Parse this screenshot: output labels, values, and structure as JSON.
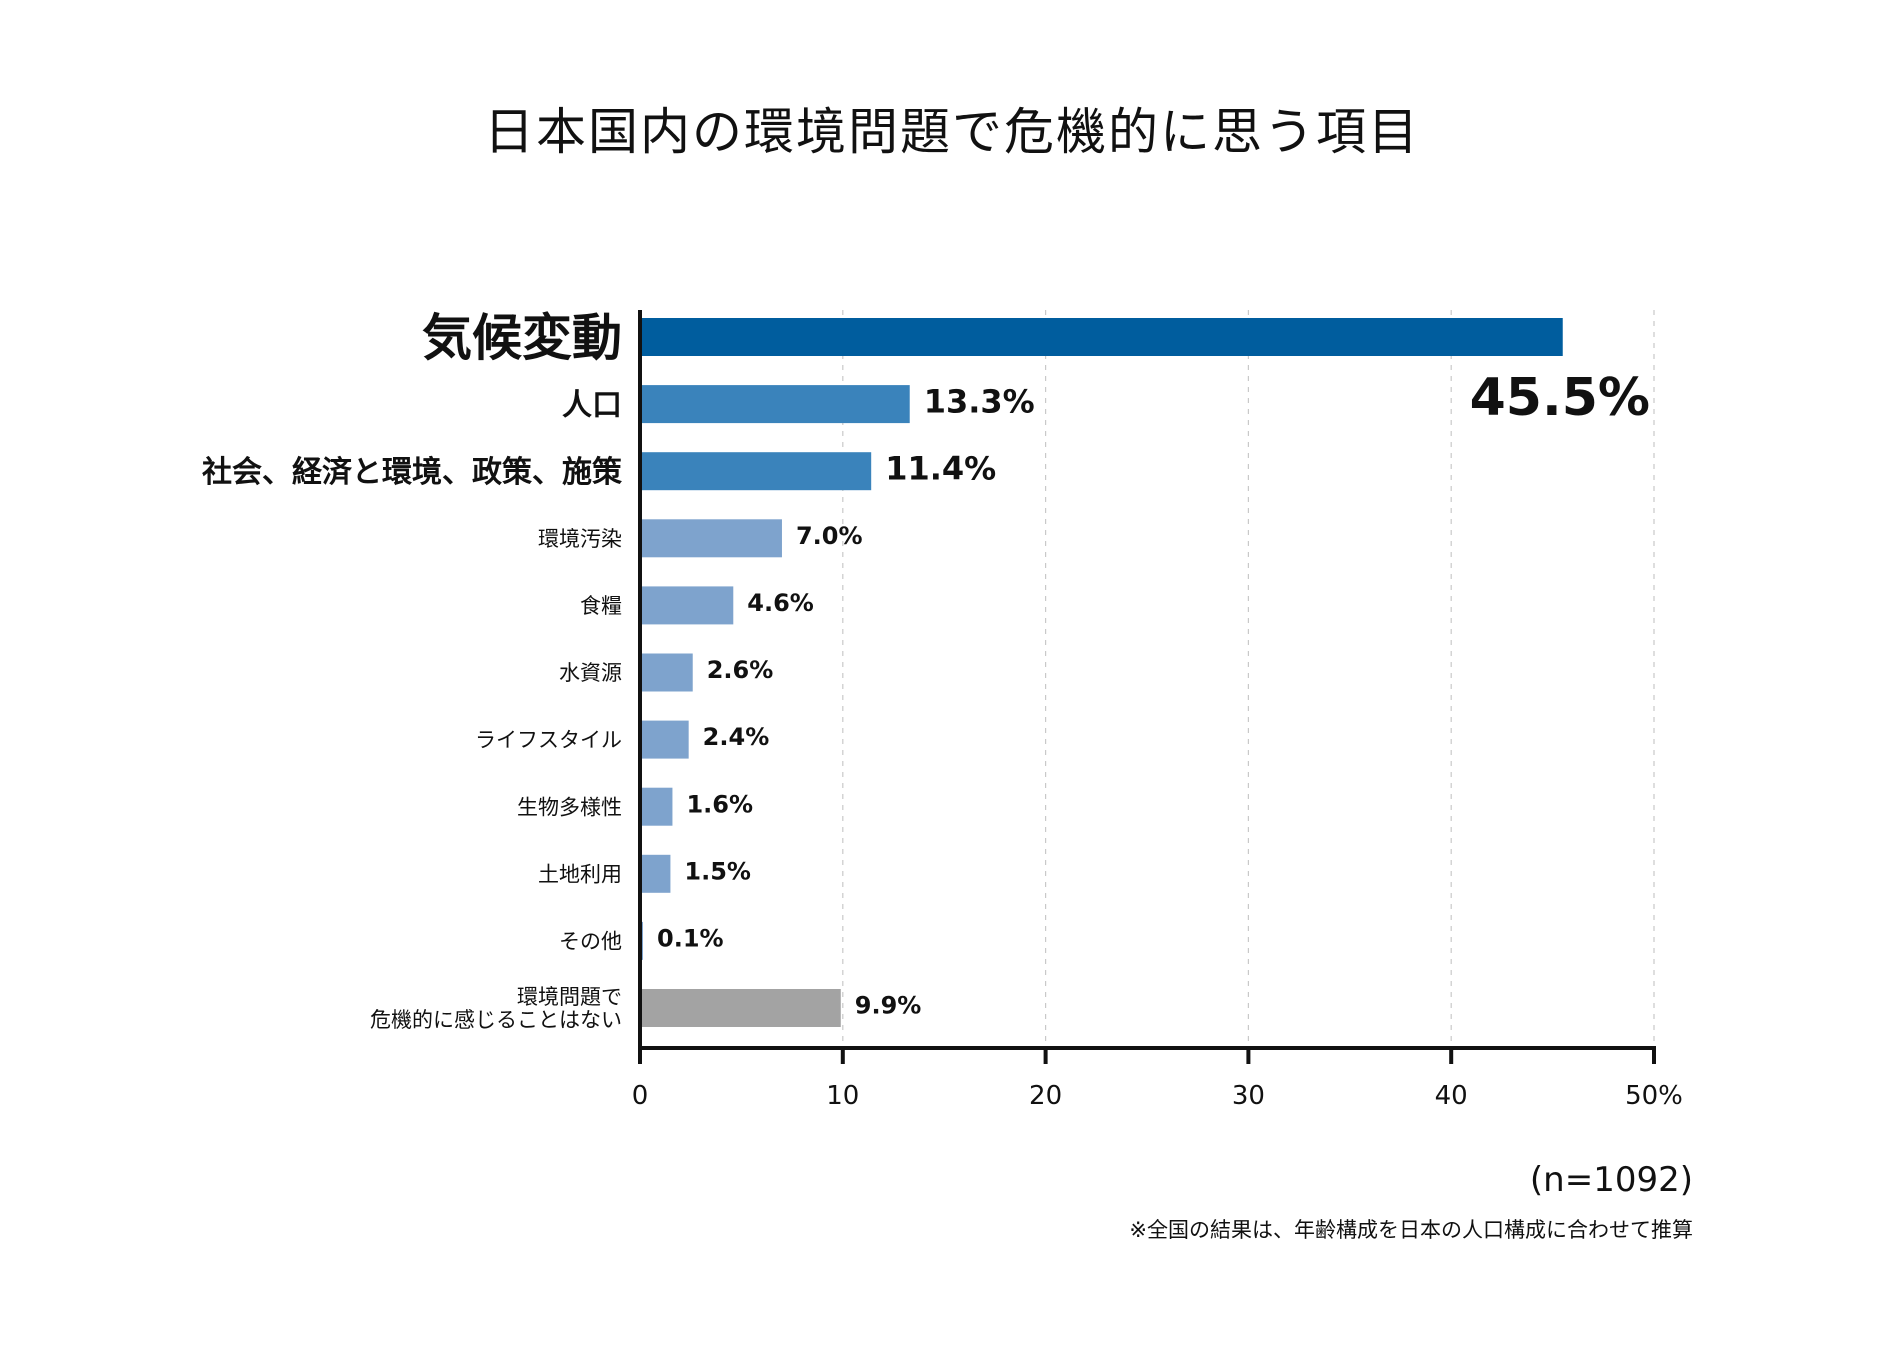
{
  "chart_data": {
    "type": "bar",
    "orientation": "horizontal",
    "title": "日本国内の環境問題で危機的に思う項目",
    "categories": [
      "気候変動",
      "人口",
      "社会、経済と環境、政策、施策",
      "環境汚染",
      "食糧",
      "水資源",
      "ライフスタイル",
      "生物多様性",
      "土地利用",
      "その他",
      [
        "環境問題で",
        "危機的に感じることはない"
      ]
    ],
    "values": [
      45.5,
      13.3,
      11.4,
      7.0,
      4.6,
      2.6,
      2.4,
      1.6,
      1.5,
      0.1,
      9.9
    ],
    "value_labels": [
      "45.5%",
      "13.3%",
      "11.4%",
      "7.0%",
      "4.6%",
      "2.6%",
      "2.4%",
      "1.6%",
      "1.5%",
      "0.1%",
      "9.9%"
    ],
    "bar_colors": [
      "#005d9e",
      "#3a83bb",
      "#3a83bb",
      "#7ea3cd",
      "#7ea3cd",
      "#7ea3cd",
      "#7ea3cd",
      "#7ea3cd",
      "#7ea3cd",
      "#7ea3cd",
      "#a3a3a3"
    ],
    "emphasis": [
      "large",
      "medium",
      "medium",
      "normal",
      "normal",
      "normal",
      "normal",
      "normal",
      "normal",
      "normal",
      "normal"
    ],
    "xlim": [
      0,
      50
    ],
    "x_ticks": [
      {
        "value": 0,
        "label": "0"
      },
      {
        "value": 10,
        "label": "10"
      },
      {
        "value": 20,
        "label": "20"
      },
      {
        "value": 30,
        "label": "30"
      },
      {
        "value": 40,
        "label": "40"
      },
      {
        "value": 50,
        "label": "50%"
      }
    ],
    "grid": "vertical dashed",
    "sample_size": "(n=1092)",
    "note": "※全国の結果は、年齢構成を日本の人口構成に合わせて推算"
  }
}
